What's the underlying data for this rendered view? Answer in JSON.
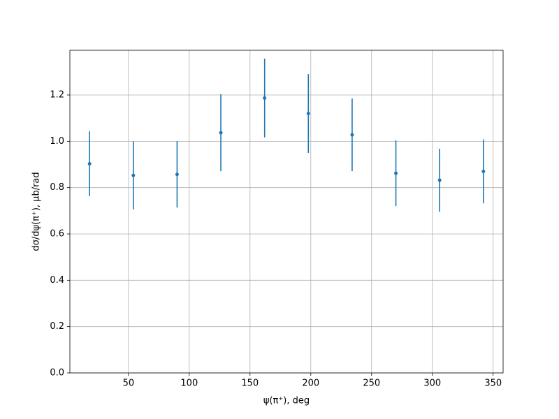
{
  "chart_data": {
    "type": "errorbar",
    "xlabel": "ψ(π⁺), deg",
    "ylabel": "dσ/dψ(π⁺), μb/rad",
    "x": [
      18,
      54,
      90,
      126,
      162,
      198,
      234,
      270,
      306,
      342
    ],
    "series": [
      {
        "color": "#1f77b4",
        "values": [
          0.903,
          0.853,
          0.857,
          1.037,
          1.187,
          1.12,
          1.028,
          0.862,
          0.832,
          0.87
        ],
        "errors": [
          0.14,
          0.147,
          0.143,
          0.166,
          0.17,
          0.17,
          0.157,
          0.142,
          0.136,
          0.138
        ]
      }
    ],
    "xlim": [
      1.8,
      358.2
    ],
    "xticks": [
      50,
      100,
      150,
      200,
      250,
      300,
      350
    ],
    "ylim": [
      0,
      1.393
    ],
    "yticks": [
      {
        "value": 0,
        "label": "0.0"
      },
      {
        "value": 0.2,
        "label": "0.2"
      },
      {
        "value": 0.4,
        "label": "0.4"
      },
      {
        "value": 0.6,
        "label": "0.6"
      },
      {
        "value": 0.8,
        "label": "0.8"
      },
      {
        "value": 1.0,
        "label": "1.0"
      },
      {
        "value": 1.2,
        "label": "1.2"
      }
    ],
    "grid": true
  }
}
